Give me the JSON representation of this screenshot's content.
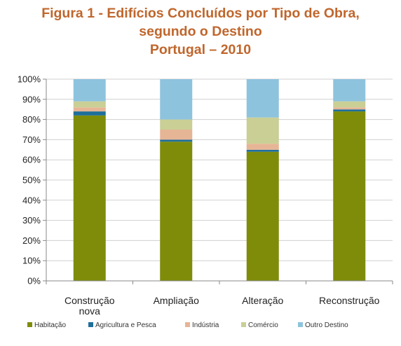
{
  "title_lines": [
    "Figura 1 - Edifícios Concluídos por Tipo de Obra,",
    "segundo o Destino",
    "Portugal – 2010"
  ],
  "chart_data": {
    "type": "bar",
    "stacked": "percent",
    "title": "Figura 1 - Edifícios Concluídos por Tipo de Obra, segundo o Destino Portugal – 2010",
    "categories": [
      [
        "Construção",
        "nova"
      ],
      [
        "Ampliação"
      ],
      [
        "Alteração"
      ],
      [
        "Reconstrução"
      ]
    ],
    "yticks": [
      "0%",
      "10%",
      "20%",
      "30%",
      "40%",
      "50%",
      "60%",
      "70%",
      "80%",
      "90%",
      "100%"
    ],
    "ylim": [
      0,
      100
    ],
    "legend_position": "bottom",
    "series": [
      {
        "name": "Habitação",
        "color": "#7f8c0a",
        "values": [
          82,
          69,
          64,
          84
        ]
      },
      {
        "name": "Agricultura e Pesca",
        "color": "#1f6f9a",
        "values": [
          2,
          1,
          1,
          1
        ]
      },
      {
        "name": "Indústria",
        "color": "#e6b596",
        "values": [
          2,
          5,
          3,
          1
        ]
      },
      {
        "name": "Comércio",
        "color": "#c9cf95",
        "values": [
          3,
          5,
          13,
          3
        ]
      },
      {
        "name": "Outro Destino",
        "color": "#8ec3dd",
        "values": [
          11,
          20,
          19,
          11
        ]
      }
    ]
  }
}
